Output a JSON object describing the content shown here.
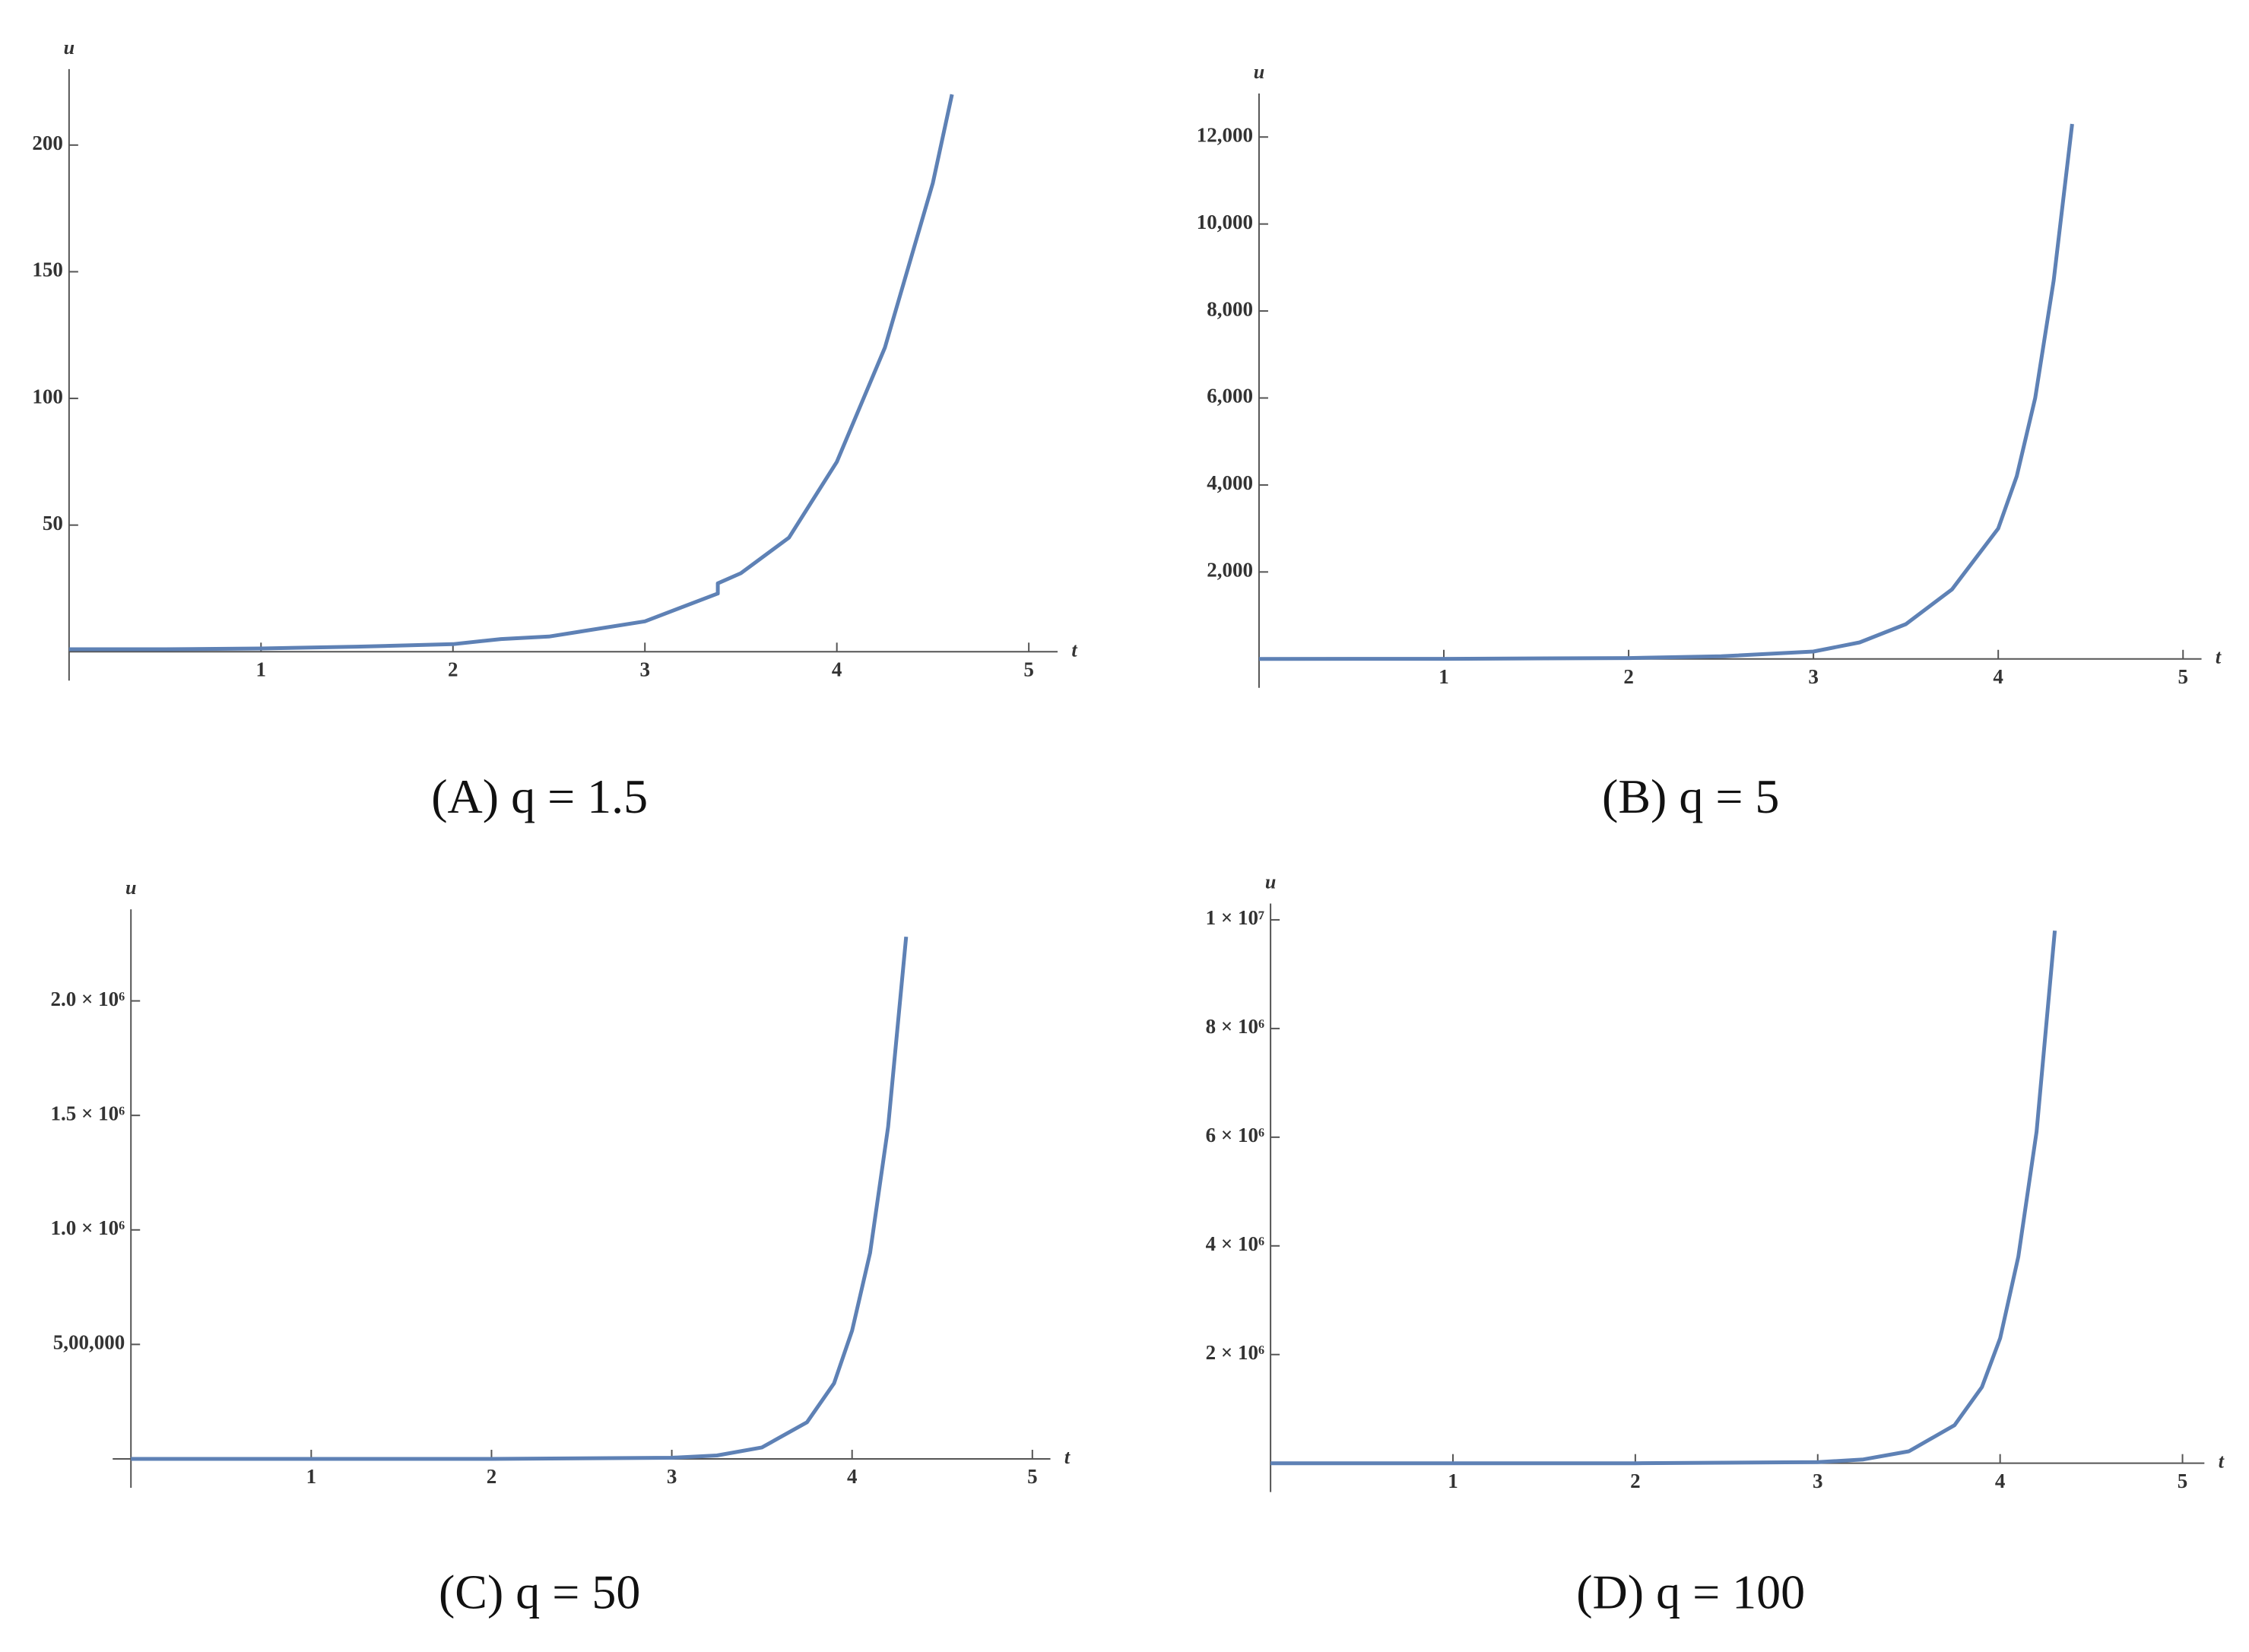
{
  "chart_data": [
    {
      "type": "line",
      "title": "(A) q = 1.5",
      "xlabel": "t",
      "ylabel": "u",
      "color": "#5e81b5",
      "x": [
        0,
        0.5,
        1,
        1.5,
        2,
        2.25,
        2.5,
        3,
        3.38,
        3.38,
        3.5,
        3.75,
        4,
        4.25,
        4.5,
        4.6
      ],
      "values": [
        1,
        1,
        1.3,
        2,
        3,
        5,
        6,
        12,
        23,
        27,
        31,
        45,
        75,
        120,
        185,
        220
      ],
      "xlim": [
        0,
        5.15
      ],
      "ylim": [
        0,
        230
      ],
      "xticks": [
        1,
        2,
        3,
        4,
        5
      ],
      "yticks": [
        50,
        100,
        150,
        200
      ]
    },
    {
      "type": "line",
      "title": "(B) q = 5",
      "xlabel": "t",
      "ylabel": "u",
      "color": "#5e81b5",
      "x": [
        0,
        1,
        2,
        2.5,
        3,
        3.25,
        3.5,
        3.75,
        4,
        4.1,
        4.2,
        4.3,
        4.4
      ],
      "values": [
        1,
        3,
        20,
        60,
        170,
        380,
        800,
        1600,
        3000,
        4200,
        6000,
        8700,
        12300
      ],
      "xlim": [
        0,
        5.1
      ],
      "ylim": [
        0,
        13000
      ],
      "xticks": [
        1,
        2,
        3,
        4,
        5
      ],
      "yticks": [
        {
          "value": 2000,
          "label": "2,000"
        },
        {
          "value": 4000,
          "label": "4,000"
        },
        {
          "value": 6000,
          "label": "6,000"
        },
        {
          "value": 8000,
          "label": "8,000"
        },
        {
          "value": 10000,
          "label": "10,000"
        },
        {
          "value": 12000,
          "label": "12,000"
        }
      ]
    },
    {
      "type": "line",
      "title": "(C) q = 50",
      "xlabel": "t",
      "ylabel": "u",
      "color": "#5e81b5",
      "x": [
        0,
        1,
        2,
        3,
        3.25,
        3.5,
        3.75,
        3.9,
        4,
        4.1,
        4.2,
        4.3
      ],
      "values": [
        0,
        0,
        0,
        5000,
        15000,
        50000,
        160000,
        330000,
        560000,
        900000,
        1450000,
        2280000
      ],
      "xlim": [
        0,
        5.1
      ],
      "ylim": [
        0,
        2400000
      ],
      "xticks": [
        1,
        2,
        3,
        4,
        5
      ],
      "yticks": [
        {
          "value": 500000,
          "label": "5,00,000"
        },
        {
          "value": 1000000,
          "label": "1.0 × 10⁶"
        },
        {
          "value": 1500000,
          "label": "1.5 × 10⁶"
        },
        {
          "value": 2000000,
          "label": "2.0 × 10⁶"
        }
      ]
    },
    {
      "type": "line",
      "title": "(D) q = 100",
      "xlabel": "t",
      "ylabel": "u",
      "color": "#5e81b5",
      "x": [
        0,
        1,
        2,
        3,
        3.25,
        3.5,
        3.75,
        3.9,
        4,
        4.1,
        4.2,
        4.3
      ],
      "values": [
        0,
        0,
        0,
        20000,
        70000,
        220000,
        700000,
        1400000,
        2300000,
        3800000,
        6100000,
        9800000
      ],
      "xlim": [
        0,
        5.12
      ],
      "ylim": [
        0,
        10300000
      ],
      "xticks": [
        1,
        2,
        3,
        4,
        5
      ],
      "yticks": [
        {
          "value": 2000000,
          "label": "2 × 10⁶"
        },
        {
          "value": 4000000,
          "label": "4 × 10⁶"
        },
        {
          "value": 6000000,
          "label": "6 × 10⁶"
        },
        {
          "value": 8000000,
          "label": "8 × 10⁶"
        },
        {
          "value": 10000000,
          "label": "1 × 10⁷"
        }
      ]
    }
  ]
}
